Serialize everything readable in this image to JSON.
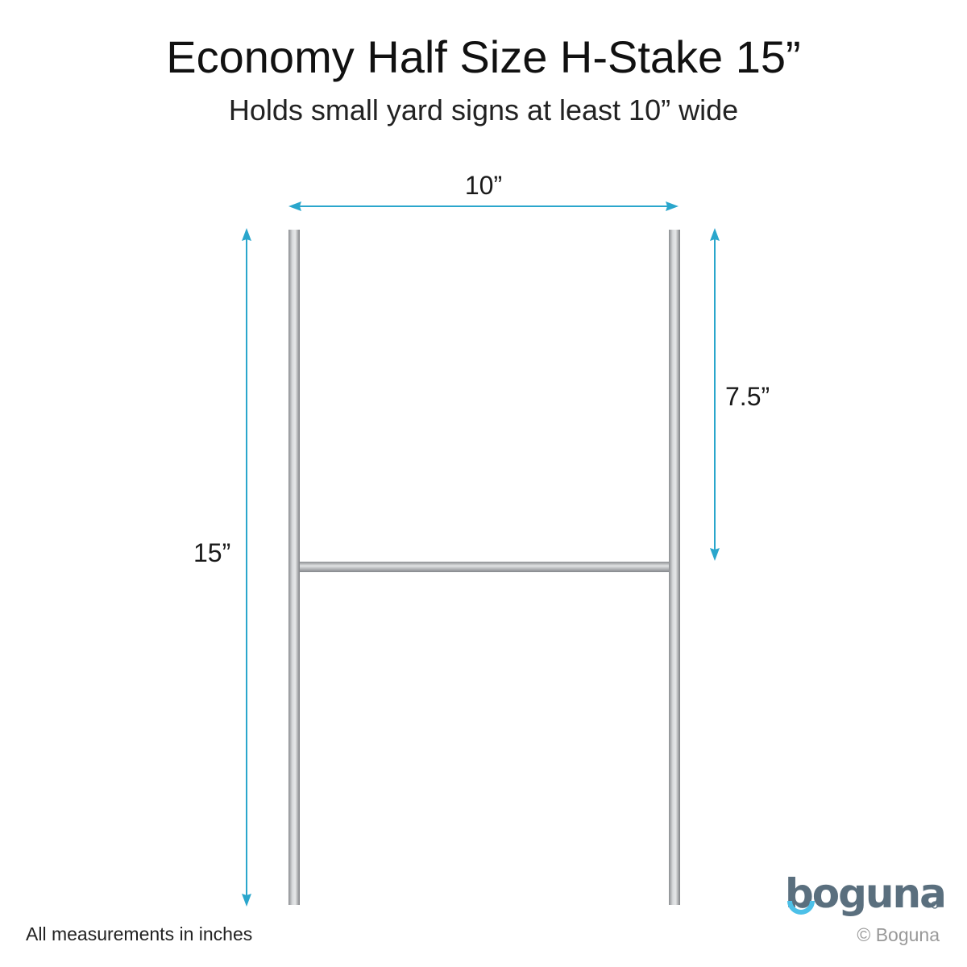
{
  "header": {
    "title": "Economy Half Size H-Stake 15”",
    "subtitle": "Holds small yard signs at least 10” wide"
  },
  "dimensions": {
    "width_label": "10”",
    "height_label": "15”",
    "half_height_label": "7.5”"
  },
  "footer": {
    "note": "All measurements in inches",
    "copyright": "© Boguna"
  },
  "logo": {
    "text": "boguna",
    "registered": "®"
  },
  "colors": {
    "arrow": "#2aa6cc",
    "logo": "#5a6f7e",
    "logo_accent": "#4cc0e8",
    "stake": "#b8bcc0"
  }
}
